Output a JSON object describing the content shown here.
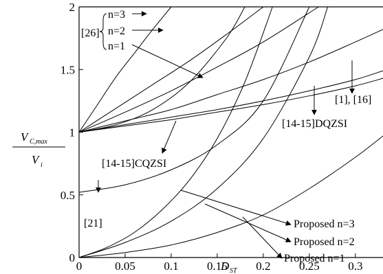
{
  "chart_data": {
    "type": "line",
    "xlabel": {
      "main": "D",
      "sub": "ST"
    },
    "ylabel": {
      "num_main": "V",
      "num_sub": "C,max",
      "den_main": "V",
      "den_sub": "i"
    },
    "xlim": [
      0,
      0.33
    ],
    "ylim": [
      0,
      2
    ],
    "x_ticks": [
      "0",
      "0.05",
      "0.1",
      "0.15",
      "0.2",
      "0.25",
      "0.3"
    ],
    "x_tick_values": [
      0,
      0.05,
      0.1,
      0.15,
      0.2,
      0.25,
      0.3
    ],
    "y_ticks": [
      "0",
      "0.5",
      "1",
      "1.5",
      "2"
    ],
    "y_tick_values": [
      0,
      0.5,
      1,
      1.5,
      2
    ],
    "grid": false,
    "series": [
      {
        "name": "[26] n=3",
        "x": [
          0,
          0.02,
          0.04,
          0.06,
          0.08,
          0.1
        ],
        "y": [
          1.0,
          1.22,
          1.44,
          1.63,
          1.82,
          2.0
        ]
      },
      {
        "name": "[26] n=2",
        "x": [
          0,
          0.04,
          0.08,
          0.12,
          0.16,
          0.2
        ],
        "y": [
          1.0,
          1.19,
          1.38,
          1.57,
          1.78,
          2.0
        ]
      },
      {
        "name": "[26] n=1",
        "x": [
          0,
          0.05,
          0.1,
          0.15,
          0.2,
          0.26
        ],
        "y": [
          1.0,
          1.16,
          1.33,
          1.52,
          1.72,
          2.0
        ]
      },
      {
        "name": "[1], [16]",
        "x": [
          0,
          0.05,
          0.1,
          0.15,
          0.2,
          0.25,
          0.3,
          0.33
        ],
        "y": [
          1.0,
          1.09,
          1.18,
          1.3,
          1.42,
          1.56,
          1.72,
          1.82
        ]
      },
      {
        "name": "[14-15]DQZSI",
        "x": [
          0,
          0.05,
          0.1,
          0.15,
          0.2,
          0.25,
          0.3,
          0.33
        ],
        "y": [
          1.0,
          1.06,
          1.12,
          1.18,
          1.25,
          1.33,
          1.42,
          1.49
        ]
      },
      {
        "name": "[14-15]CQZSI",
        "x": [
          0,
          0.05,
          0.1,
          0.15,
          0.2,
          0.25,
          0.3,
          0.33
        ],
        "y": [
          1.0,
          1.05,
          1.1,
          1.16,
          1.22,
          1.29,
          1.37,
          1.43
        ]
      },
      {
        "name": "[21]",
        "x": [
          0,
          0.05,
          0.1,
          0.15,
          0.2,
          0.25
        ],
        "y": [
          0.52,
          0.58,
          0.7,
          0.9,
          1.25,
          2.0
        ]
      },
      {
        "name": "[21] upper",
        "x": [
          0,
          0.04,
          0.08,
          0.12,
          0.16,
          0.18
        ],
        "y": [
          1.0,
          1.06,
          1.18,
          1.4,
          1.75,
          2.0
        ]
      },
      {
        "name": "Proposed n=3",
        "x": [
          0,
          0.03,
          0.06,
          0.09,
          0.12,
          0.15,
          0.18,
          0.21
        ],
        "y": [
          0.0,
          0.08,
          0.2,
          0.38,
          0.62,
          0.95,
          1.4,
          2.0
        ]
      },
      {
        "name": "Proposed n=2",
        "x": [
          0,
          0.05,
          0.1,
          0.15,
          0.2,
          0.25,
          0.27
        ],
        "y": [
          0.0,
          0.12,
          0.29,
          0.55,
          0.95,
          1.6,
          2.0
        ]
      },
      {
        "name": "Proposed n=1",
        "x": [
          0,
          0.05,
          0.1,
          0.15,
          0.2,
          0.25,
          0.3,
          0.33
        ],
        "y": [
          0.0,
          0.04,
          0.1,
          0.2,
          0.34,
          0.55,
          0.8,
          0.97
        ]
      }
    ],
    "annotations": {
      "bracket_label": "[26]",
      "n3": "n=3",
      "n2": "n=2",
      "n1": "n=1",
      "ref_1_16": "[1], [16]",
      "dqzsi": "[14-15]DQZSI",
      "cqzsi": "[14-15]CQZSI",
      "ref21": "[21]",
      "prop3": "Proposed n=3",
      "prop2": "Proposed n=2",
      "prop1": "Proposed n=1"
    }
  }
}
